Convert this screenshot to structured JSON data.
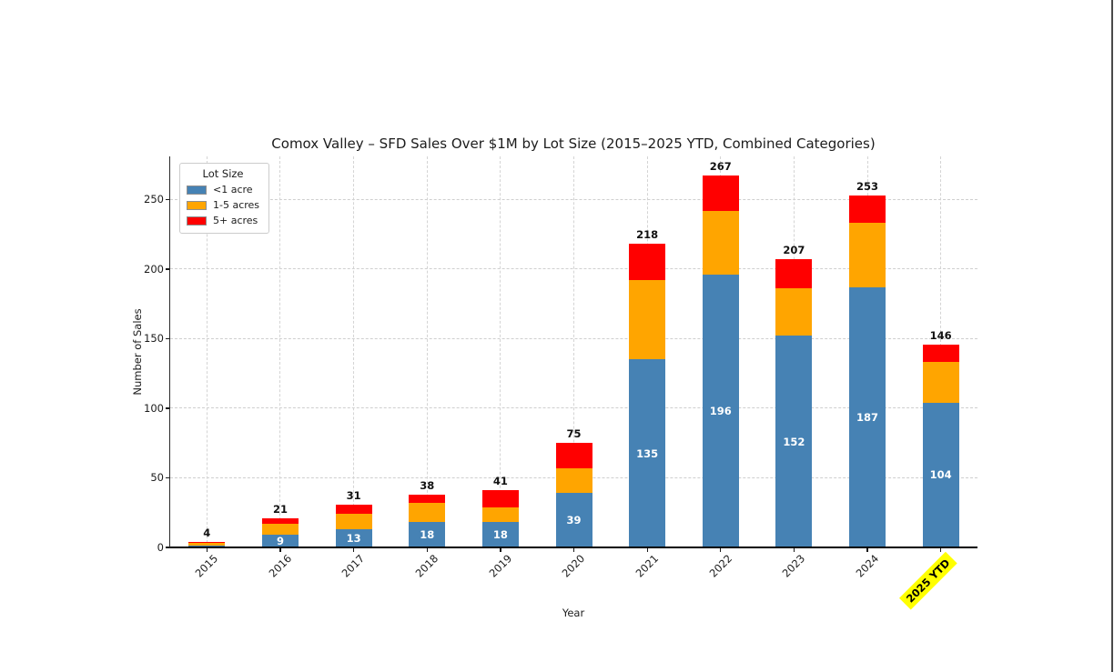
{
  "chart_data": {
    "type": "bar",
    "stacked": true,
    "title": "Comox Valley – SFD Sales Over $1M by Lot Size (2015–2025 YTD, Combined Categories)",
    "xlabel": "Year",
    "ylabel": "Number of Sales",
    "categories": [
      "2015",
      "2016",
      "2017",
      "2018",
      "2019",
      "2020",
      "2021",
      "2022",
      "2023",
      "2024",
      "2025 YTD"
    ],
    "highlighted_category": "2025 YTD",
    "series": [
      {
        "name": "<1 acre",
        "color": "#4682b4",
        "values": [
          1,
          9,
          13,
          18,
          18,
          39,
          135,
          196,
          152,
          187,
          104
        ]
      },
      {
        "name": "1-5 acres",
        "color": "#ffa500",
        "values": [
          2,
          8,
          11,
          14,
          11,
          18,
          57,
          46,
          34,
          46,
          29
        ]
      },
      {
        "name": "5+ acres",
        "color": "#ff0000",
        "values": [
          1,
          4,
          7,
          6,
          12,
          18,
          26,
          25,
          21,
          20,
          13
        ]
      }
    ],
    "totals": [
      4,
      21,
      31,
      38,
      41,
      75,
      218,
      267,
      207,
      253,
      146
    ],
    "inside_labels": [
      "",
      "9",
      "13",
      "18",
      "18",
      "39",
      "135",
      "196",
      "152",
      "187",
      "104"
    ],
    "yticks": [
      0,
      50,
      100,
      150,
      200,
      250
    ],
    "ylim": [
      0,
      281
    ],
    "grid": true,
    "legend": {
      "title": "Lot Size",
      "position": "upper left"
    },
    "highlight_color": "#ffff00"
  }
}
